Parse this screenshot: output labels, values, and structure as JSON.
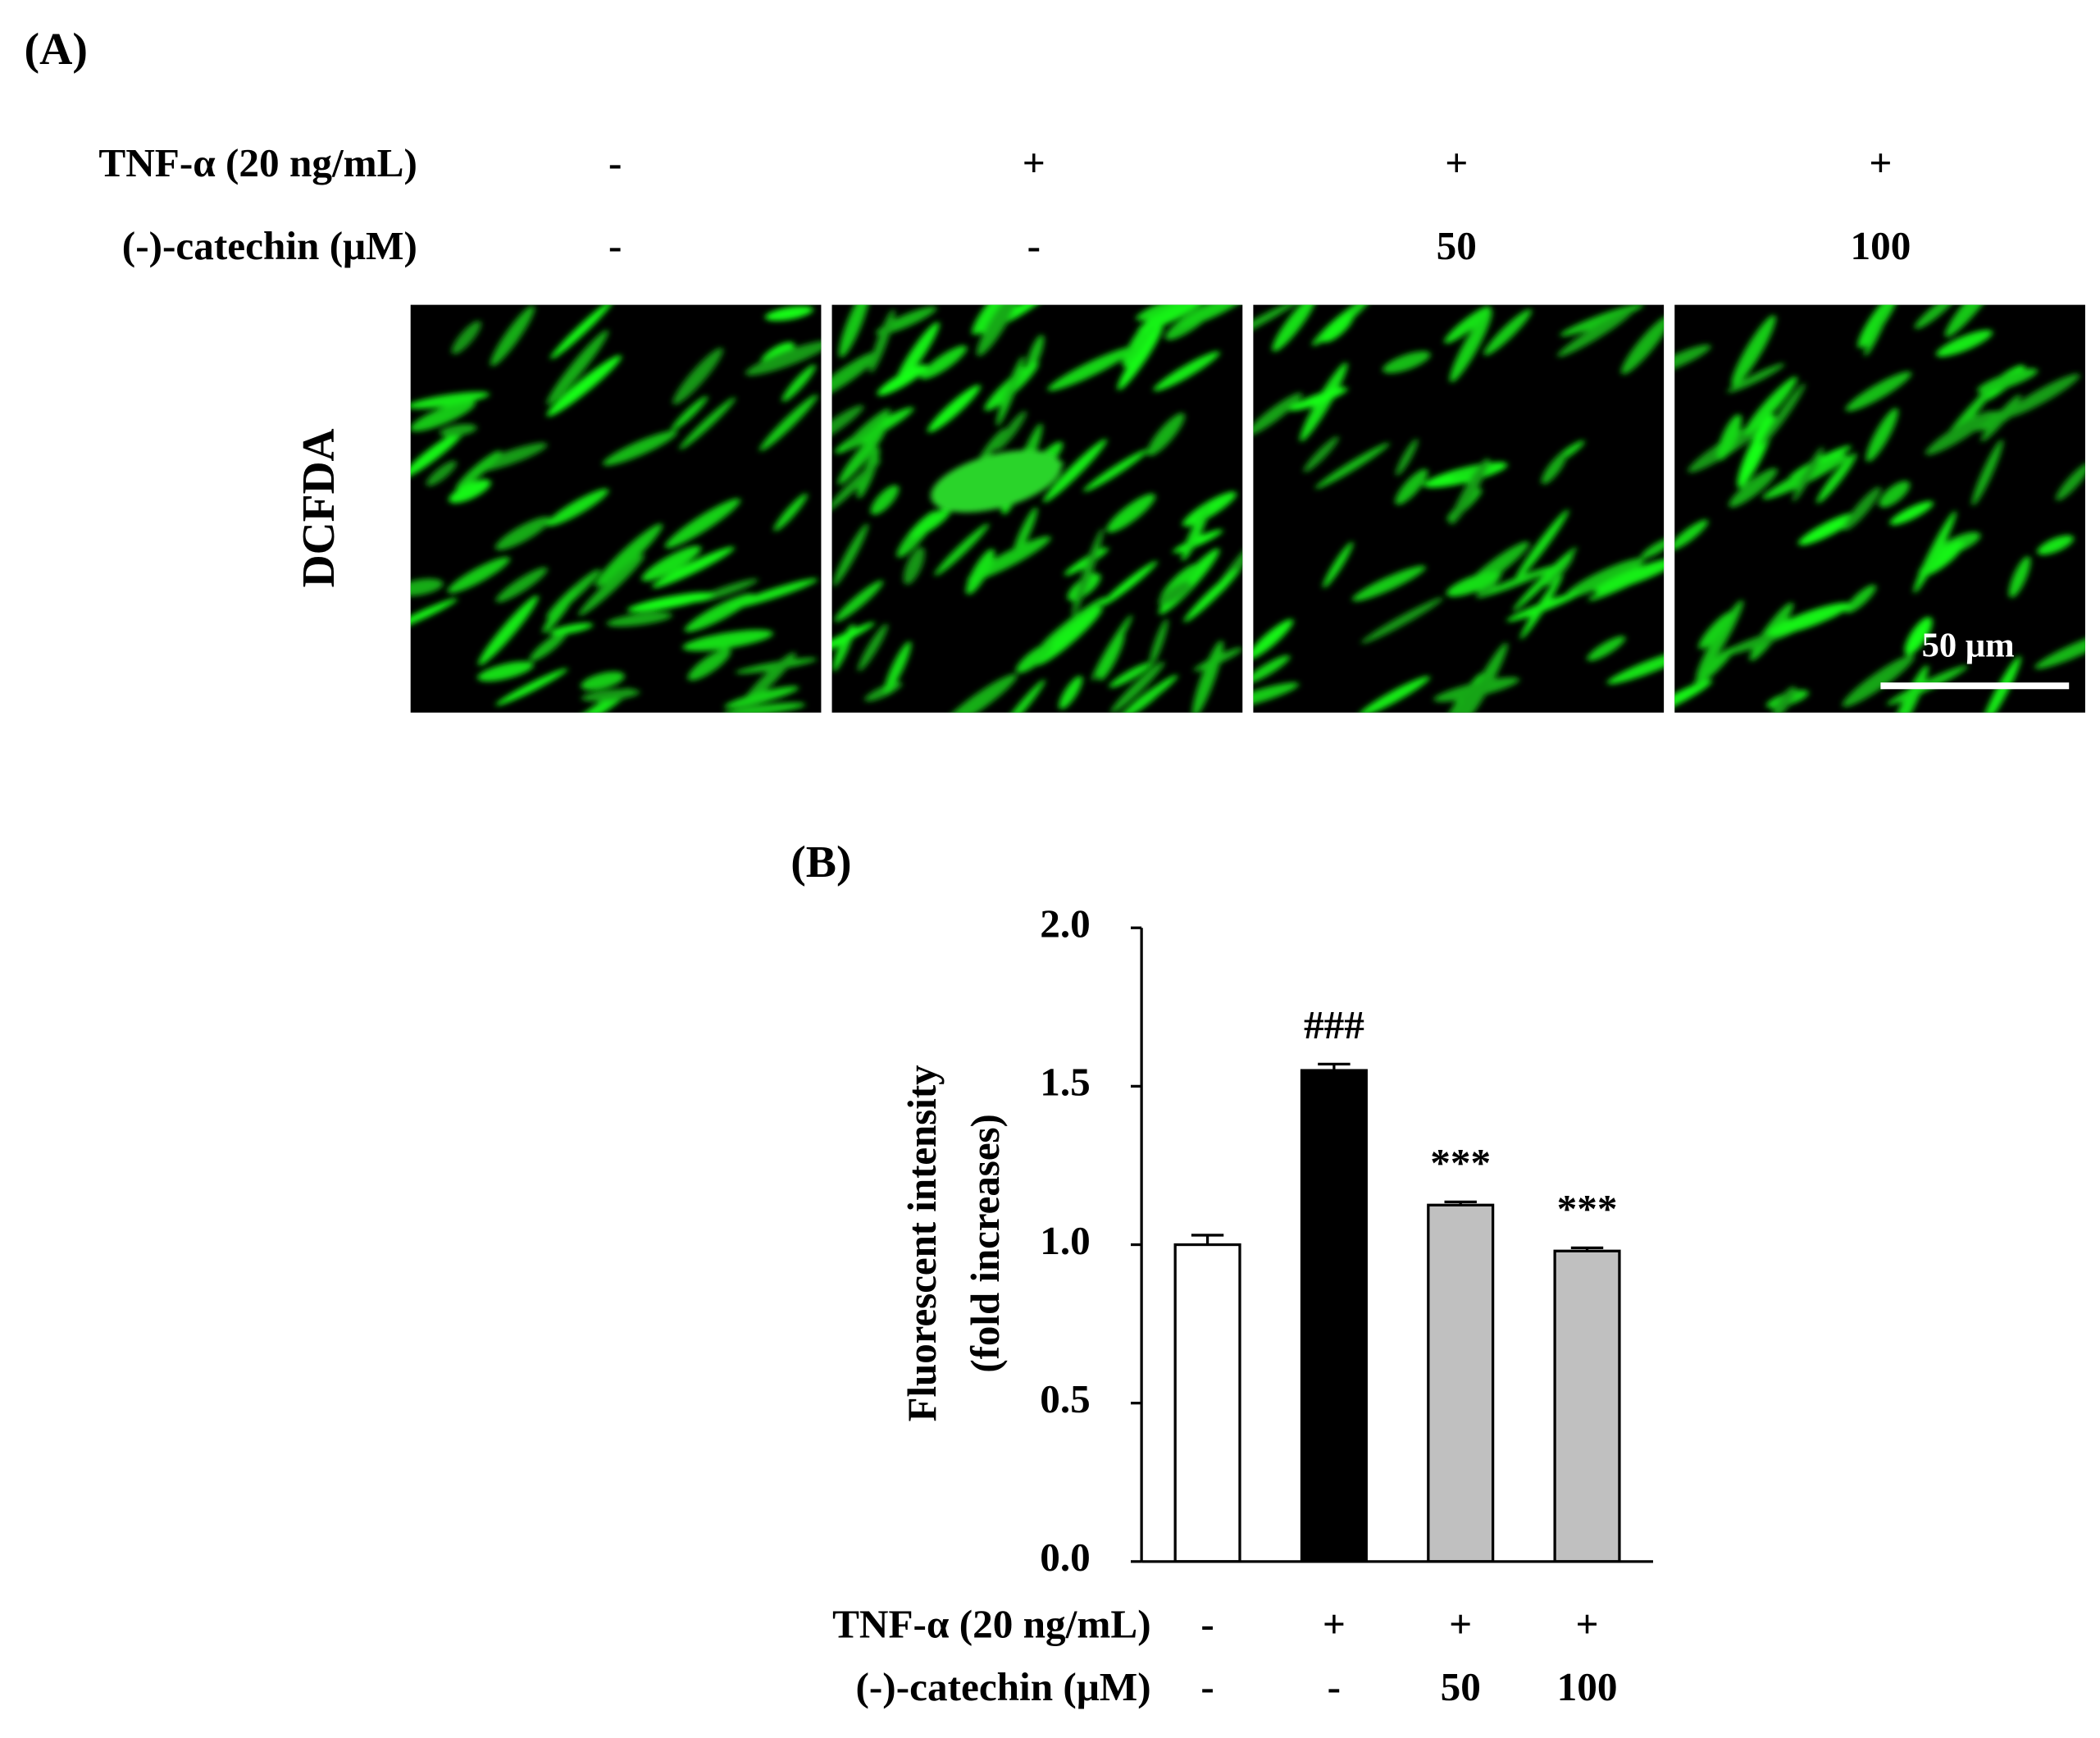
{
  "panel_a": {
    "label": "(A)",
    "rows": [
      {
        "label": "TNF-α (20 ng/mL)",
        "values": [
          "-",
          "+",
          "+",
          "+"
        ]
      },
      {
        "label": "(-)-catechin (μM)",
        "values": [
          "-",
          "-",
          "50",
          "100"
        ]
      }
    ],
    "stain": "DCFDA",
    "scale_bar": "50 μm"
  },
  "chart_data": {
    "type": "bar",
    "panel_label": "(B)",
    "y_label": [
      "Fluorescent intensity",
      "(fold increases)"
    ],
    "categories": [
      null,
      null,
      null,
      null
    ],
    "values": [
      1.0,
      1.55,
      1.125,
      0.98
    ],
    "errors": [
      0.03,
      0.02,
      0.01,
      0.01
    ],
    "colors": [
      "#ffffff",
      "#000000",
      "#c0c0c0",
      "#c0c0c0"
    ],
    "annotations": [
      null,
      "###",
      "***",
      "***"
    ],
    "x_conditions": [
      {
        "label": "TNF-α (20 ng/mL)",
        "values": [
          "-",
          "+",
          "+",
          "+"
        ]
      },
      {
        "label": "(-)-catechin (μM)",
        "values": [
          "-",
          "-",
          "50",
          "100"
        ]
      }
    ],
    "ylim": [
      0,
      2
    ],
    "yticks": [
      {
        "value": 0,
        "label": "0.0"
      },
      0.5,
      {
        "value": 1,
        "label": "1.0"
      },
      1.5,
      {
        "value": 2,
        "label": "2.0"
      }
    ]
  }
}
